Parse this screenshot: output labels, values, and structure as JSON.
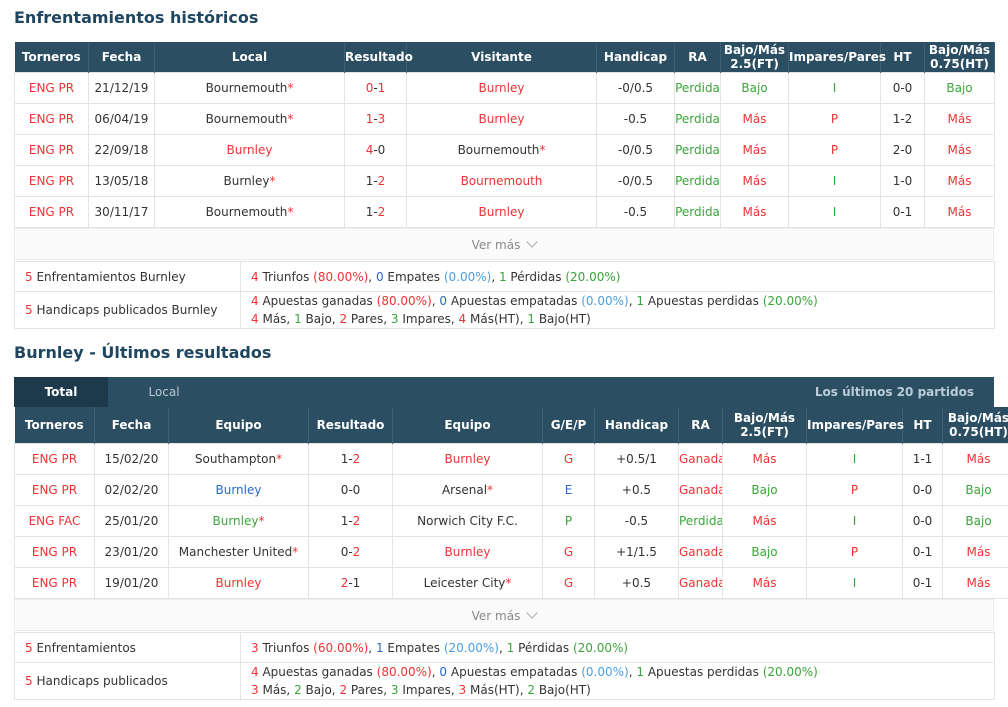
{
  "h2h": {
    "title": "Enfrentamientos históricos",
    "headers": [
      "Torneros",
      "Fecha",
      "Local",
      "Resultado",
      "Visitante",
      "Handicap",
      "RA",
      "Bajo/Más 2.5(FT)",
      "Impares/Pares",
      "HT",
      "Bajo/Más 0.75(HT)"
    ],
    "rows": [
      {
        "league": "ENG PR",
        "date": "21/12/19",
        "home": "Bournemouth",
        "home_star": "*",
        "home_color": "dark",
        "score_home": "0",
        "score_sep": "-",
        "score_away": "1",
        "score_color_home": "red",
        "score_color_away": "red",
        "away": "Burnley",
        "away_star": "",
        "away_color": "red",
        "handicap": "-0/0.5",
        "ra": "Perdida",
        "ou": "Bajo",
        "ou_color": "green",
        "oe": "I",
        "oe_color": "green",
        "ht": "0-0",
        "ht_ou": "Bajo",
        "ht_ou_color": "green"
      },
      {
        "league": "ENG PR",
        "date": "06/04/19",
        "home": "Bournemouth",
        "home_star": "*",
        "home_color": "dark",
        "score_home": "1",
        "score_sep": "-",
        "score_away": "3",
        "score_color_home": "red",
        "score_color_away": "red",
        "away": "Burnley",
        "away_star": "",
        "away_color": "red",
        "handicap": "-0.5",
        "ra": "Perdida",
        "ou": "Más",
        "ou_color": "red",
        "oe": "P",
        "oe_color": "red",
        "ht": "1-2",
        "ht_ou": "Más",
        "ht_ou_color": "red"
      },
      {
        "league": "ENG PR",
        "date": "22/09/18",
        "home": "Burnley",
        "home_star": "",
        "home_color": "red",
        "score_home": "4",
        "score_sep": "-",
        "score_away": "0",
        "score_color_home": "red",
        "score_color_away": "dark",
        "away": "Bournemouth",
        "away_star": "*",
        "away_color": "dark",
        "handicap": "-0/0.5",
        "ra": "Perdida",
        "ou": "Más",
        "ou_color": "red",
        "oe": "P",
        "oe_color": "red",
        "ht": "2-0",
        "ht_ou": "Más",
        "ht_ou_color": "red"
      },
      {
        "league": "ENG PR",
        "date": "13/05/18",
        "home": "Burnley",
        "home_star": "*",
        "home_color": "dark",
        "score_home": "1",
        "score_sep": "-",
        "score_away": "2",
        "score_color_home": "dark",
        "score_color_away": "red",
        "away": "Bournemouth",
        "away_star": "",
        "away_color": "red",
        "handicap": "-0/0.5",
        "ra": "Perdida",
        "ou": "Más",
        "ou_color": "red",
        "oe": "I",
        "oe_color": "green",
        "ht": "1-0",
        "ht_ou": "Más",
        "ht_ou_color": "red"
      },
      {
        "league": "ENG PR",
        "date": "30/11/17",
        "home": "Bournemouth",
        "home_star": "*",
        "home_color": "dark",
        "score_home": "1",
        "score_sep": "-",
        "score_away": "2",
        "score_color_home": "dark",
        "score_color_away": "red",
        "away": "Burnley",
        "away_star": "",
        "away_color": "red",
        "handicap": "-0.5",
        "ra": "Perdida",
        "ou": "Más",
        "ou_color": "red",
        "oe": "I",
        "oe_color": "green",
        "ht": "0-1",
        "ht_ou": "Más",
        "ht_ou_color": "red"
      }
    ],
    "more_label": "Ver más",
    "summary": {
      "row1": {
        "count": "5",
        "label": "Enfrentamientos Burnley",
        "wins": "4",
        "wins_label": "Triunfos",
        "wins_pct": "(80.00%)",
        "draws": "0",
        "draws_label": "Empates",
        "draws_pct": "(0.00%)",
        "losses": "1",
        "losses_label": "Pérdidas",
        "losses_pct": "(20.00%)"
      },
      "row2": {
        "count": "5",
        "label": "Handicaps publicados Burnley",
        "won": "4",
        "won_label": "Apuestas ganadas",
        "won_pct": "(80.00%)",
        "tied": "0",
        "tied_label": "Apuestas empatadas",
        "tied_pct": "(0.00%)",
        "lost": "1",
        "lost_label": "Apuestas perdidas",
        "lost_pct": "(20.00%)",
        "mas": "4",
        "mas_label": "Más,",
        "bajo": "1",
        "bajo_label": "Bajo,",
        "pares": "2",
        "pares_label": "Pares,",
        "impares": "3",
        "impares_label": "Impares,",
        "mas_ht": "4",
        "mas_ht_label": "Más(HT),",
        "bajo_ht": "1",
        "bajo_ht_label": "Bajo(HT)"
      }
    }
  },
  "recent": {
    "title": "Burnley - Últimos resultados",
    "tabs": {
      "total": "Total",
      "local": "Local",
      "right": "Los últimos 20 partidos"
    },
    "headers": [
      "Torneros",
      "Fecha",
      "Equipo",
      "Resultado",
      "Equipo",
      "G/E/P",
      "Handicap",
      "RA",
      "Bajo/Más 2.5(FT)",
      "Impares/Pares",
      "HT",
      "Bajo/Más 0.75(HT)"
    ],
    "rows": [
      {
        "league": "ENG PR",
        "date": "15/02/20",
        "home": "Southampton",
        "home_star": "*",
        "home_color": "dark",
        "score_home": "1",
        "score_sep": "-",
        "score_away": "2",
        "score_color_home": "dark",
        "score_color_away": "red",
        "away": "Burnley",
        "away_star": "",
        "away_color": "red",
        "gep": "G",
        "gep_color": "red",
        "handicap": "+0.5/1",
        "ra": "Ganada",
        "ra_color": "red",
        "ou": "Más",
        "ou_color": "red",
        "oe": "I",
        "oe_color": "green",
        "ht": "1-1",
        "ht_ou": "Más",
        "ht_ou_color": "red"
      },
      {
        "league": "ENG PR",
        "date": "02/02/20",
        "home": "Burnley",
        "home_star": "",
        "home_color": "blue",
        "score_home": "0",
        "score_sep": "-",
        "score_away": "0",
        "score_color_home": "dark",
        "score_color_away": "dark",
        "away": "Arsenal",
        "away_star": "*",
        "away_color": "dark",
        "gep": "E",
        "gep_color": "blue",
        "handicap": "+0.5",
        "ra": "Ganada",
        "ra_color": "red",
        "ou": "Bajo",
        "ou_color": "green",
        "oe": "P",
        "oe_color": "red",
        "ht": "0-0",
        "ht_ou": "Bajo",
        "ht_ou_color": "green"
      },
      {
        "league": "ENG FAC",
        "date": "25/01/20",
        "home": "Burnley",
        "home_star": "*",
        "home_color": "green",
        "score_home": "1",
        "score_sep": "-",
        "score_away": "2",
        "score_color_home": "dark",
        "score_color_away": "red",
        "away": "Norwich City F.C.",
        "away_star": "",
        "away_color": "dark",
        "gep": "P",
        "gep_color": "green",
        "handicap": "-0.5",
        "ra": "Perdida",
        "ra_color": "green",
        "ou": "Más",
        "ou_color": "red",
        "oe": "I",
        "oe_color": "green",
        "ht": "0-0",
        "ht_ou": "Bajo",
        "ht_ou_color": "green"
      },
      {
        "league": "ENG PR",
        "date": "23/01/20",
        "home": "Manchester United",
        "home_star": "*",
        "home_color": "dark",
        "score_home": "0",
        "score_sep": "-",
        "score_away": "2",
        "score_color_home": "dark",
        "score_color_away": "red",
        "away": "Burnley",
        "away_star": "",
        "away_color": "red",
        "gep": "G",
        "gep_color": "red",
        "handicap": "+1/1.5",
        "ra": "Ganada",
        "ra_color": "red",
        "ou": "Bajo",
        "ou_color": "green",
        "oe": "P",
        "oe_color": "red",
        "ht": "0-1",
        "ht_ou": "Más",
        "ht_ou_color": "red"
      },
      {
        "league": "ENG PR",
        "date": "19/01/20",
        "home": "Burnley",
        "home_star": "",
        "home_color": "red",
        "score_home": "2",
        "score_sep": "-",
        "score_away": "1",
        "score_color_home": "red",
        "score_color_away": "dark",
        "away": "Leicester City",
        "away_star": "*",
        "away_color": "dark",
        "gep": "G",
        "gep_color": "red",
        "handicap": "+0.5",
        "ra": "Ganada",
        "ra_color": "red",
        "ou": "Más",
        "ou_color": "red",
        "oe": "I",
        "oe_color": "green",
        "ht": "0-1",
        "ht_ou": "Más",
        "ht_ou_color": "red"
      }
    ],
    "more_label": "Ver más",
    "summary": {
      "row1": {
        "count": "5",
        "label": "Enfrentamientos",
        "wins": "3",
        "wins_label": "Triunfos",
        "wins_pct": "(60.00%)",
        "draws": "1",
        "draws_label": "Empates",
        "draws_pct": "(20.00%)",
        "losses": "1",
        "losses_label": "Pérdidas",
        "losses_pct": "(20.00%)"
      },
      "row2": {
        "count": "5",
        "label": "Handicaps publicados",
        "won": "4",
        "won_label": "Apuestas ganadas",
        "won_pct": "(80.00%)",
        "tied": "0",
        "tied_label": "Apuestas empatadas",
        "tied_pct": "(0.00%)",
        "lost": "1",
        "lost_label": "Apuestas perdidas",
        "lost_pct": "(20.00%)",
        "mas": "3",
        "mas_label": "Más,",
        "bajo": "2",
        "bajo_label": "Bajo,",
        "pares": "2",
        "pares_label": "Pares,",
        "impares": "3",
        "impares_label": "Impares,",
        "mas_ht": "3",
        "mas_ht_label": "Más(HT),",
        "bajo_ht": "2",
        "bajo_ht_label": "Bajo(HT)"
      }
    }
  }
}
